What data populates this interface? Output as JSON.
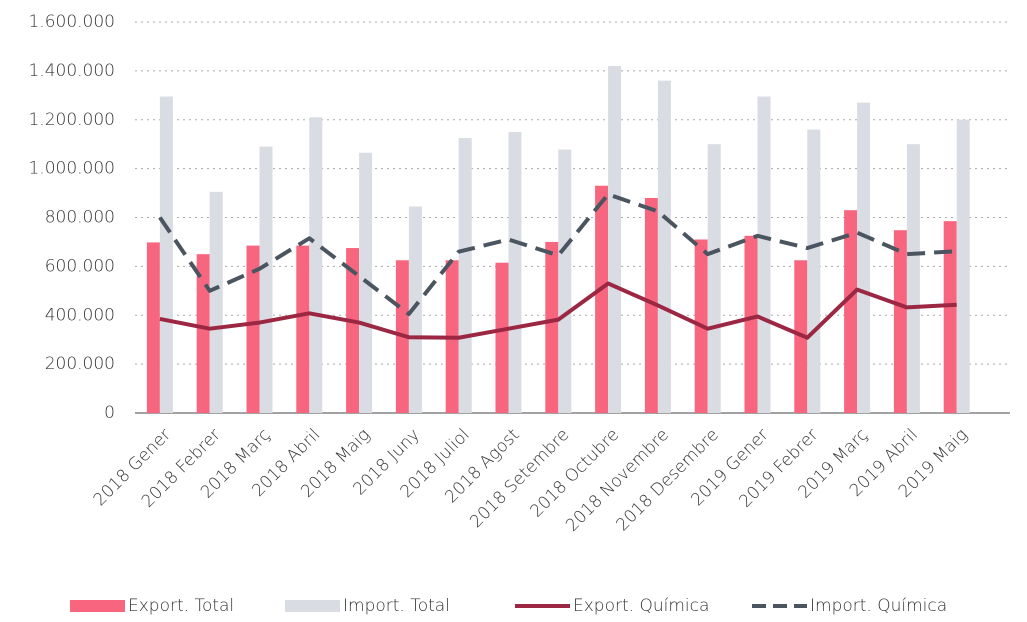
{
  "chart_data": {
    "type": "bar_line",
    "categories": [
      "2018 Gener",
      "2018 Febrer",
      "2018 Març",
      "2018 Abril",
      "2018 Maig",
      "2018 Juny",
      "2018 Juliol",
      "2018 Agost",
      "2018 Setembre",
      "2018 Octubre",
      "2018 Novembre",
      "2018 Desembre",
      "2019 Gener",
      "2019 Febrer",
      "2019 Març",
      "2019 Abril",
      "2019 Maig"
    ],
    "series": [
      {
        "name": "Export. Total",
        "type": "bar",
        "color": "#f7667e",
        "values": [
          698000,
          650000,
          685000,
          685000,
          675000,
          625000,
          625000,
          615000,
          700000,
          930000,
          880000,
          710000,
          725000,
          625000,
          830000,
          748000,
          785000
        ]
      },
      {
        "name": "Import. Total",
        "type": "bar",
        "color": "#d9dce3",
        "values": [
          1295000,
          905000,
          1090000,
          1210000,
          1065000,
          845000,
          1125000,
          1150000,
          1078000,
          1420000,
          1360000,
          1100000,
          1295000,
          1160000,
          1270000,
          1100000,
          1200000
        ]
      },
      {
        "name": "Export. Química",
        "type": "line",
        "color": "#9b2743",
        "values": [
          385000,
          345000,
          370000,
          408000,
          370000,
          310000,
          308000,
          345000,
          382000,
          530000,
          440000,
          345000,
          395000,
          308000,
          505000,
          432000,
          443000
        ]
      },
      {
        "name": "Import. Química",
        "type": "line",
        "dashed": true,
        "color": "#4a5560",
        "values": [
          800000,
          500000,
          590000,
          715000,
          560000,
          405000,
          660000,
          710000,
          645000,
          895000,
          825000,
          650000,
          725000,
          675000,
          738000,
          650000,
          662000
        ]
      }
    ],
    "ylim": [
      0,
      1600000
    ],
    "yticks": [
      0,
      {
        "value": 200000,
        "label": "200.000"
      },
      {
        "value": 400000,
        "label": "400.000"
      },
      {
        "value": 600000,
        "label": "600.000"
      },
      {
        "value": 800000,
        "label": "800.000"
      },
      {
        "value": 1000000,
        "label": "1.000.000"
      },
      {
        "value": 1200000,
        "label": "1.200.000"
      },
      {
        "value": 1400000,
        "label": "1.400.000"
      },
      {
        "value": 1600000,
        "label": "1.600.000"
      }
    ],
    "grid": true,
    "legend": "bottom"
  }
}
